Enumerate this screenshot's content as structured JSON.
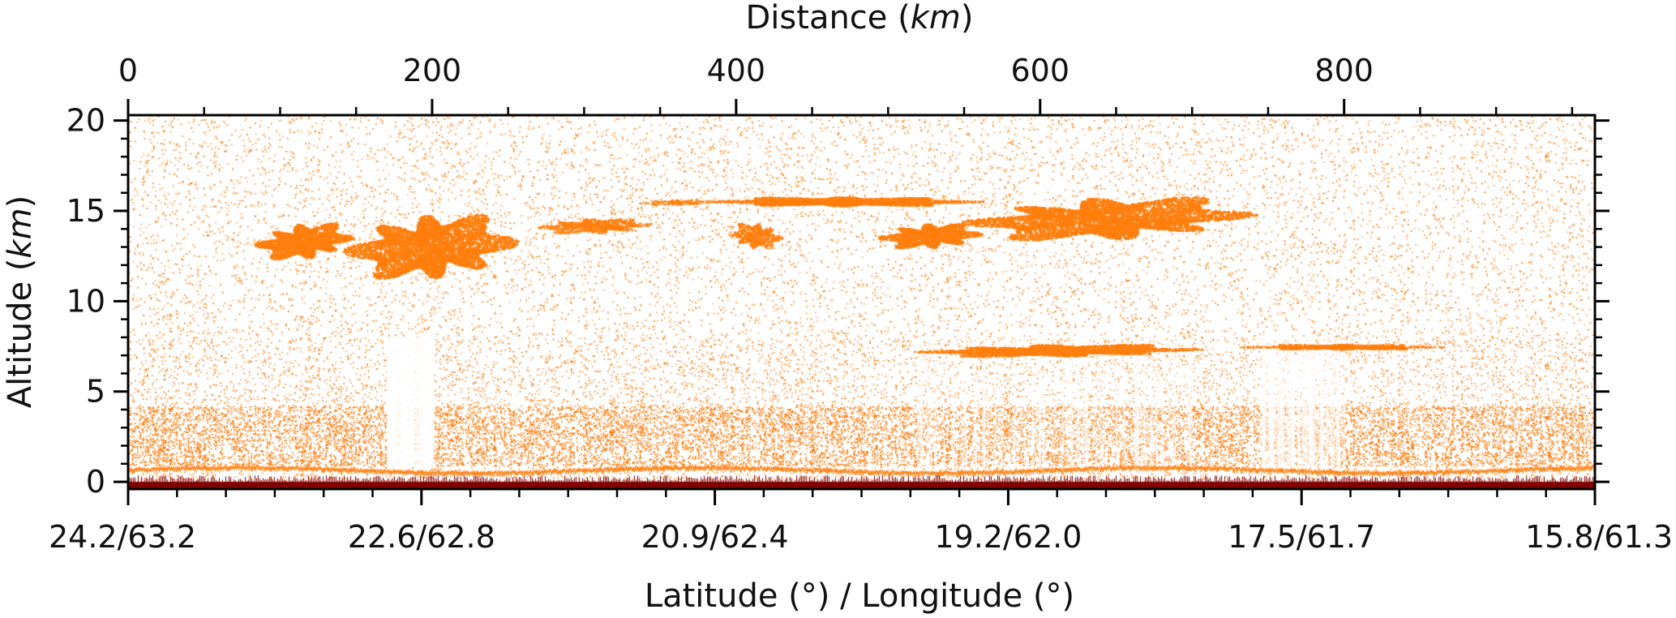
{
  "chart_data": {
    "type": "heatmap",
    "description_type": "lidar backscatter cross-section (curtain plot)",
    "top_axis": {
      "label_prefix": "Distance (",
      "label_italic": "km",
      "label_suffix": ")",
      "range": [
        0,
        965
      ],
      "ticks": [
        0,
        200,
        400,
        600,
        800
      ],
      "minor_step": 50
    },
    "y_axis": {
      "label_prefix": "Altitude (",
      "label_italic": "km",
      "label_suffix": ")",
      "range": [
        -0.4,
        20.3
      ],
      "ticks": [
        0,
        5,
        10,
        15,
        20
      ],
      "minor_step": 1
    },
    "bottom_axis": {
      "label": "Latitude (°) / Longitude (°)",
      "range": [
        0,
        965
      ],
      "ticks": [
        {
          "distance": 0,
          "label": "24.2/63.2"
        },
        {
          "distance": 193,
          "label": "22.6/62.8"
        },
        {
          "distance": 386,
          "label": "20.9/62.4"
        },
        {
          "distance": 579,
          "label": "19.2/62.0"
        },
        {
          "distance": 772,
          "label": "17.5/61.7"
        },
        {
          "distance": 965,
          "label": "15.8/61.3"
        }
      ],
      "minor_count": 30
    },
    "colors": {
      "signal": "#ff7f0e",
      "surface": "#800000",
      "background": "#ffffff",
      "axis": "#000000"
    },
    "features": {
      "cirrus_clouds": [
        {
          "distance": [
            83,
            148
          ],
          "altitude": [
            12.2,
            14.5
          ],
          "strength": "high"
        },
        {
          "distance": [
            145,
            253
          ],
          "altitude": [
            10.8,
            15.3
          ],
          "strength": "high"
        },
        {
          "distance": [
            268,
            345
          ],
          "altitude": [
            13.7,
            14.7
          ],
          "strength": "medium"
        },
        {
          "distance": [
            335,
            385
          ],
          "altitude": [
            15.3,
            15.7
          ],
          "strength": "low"
        },
        {
          "distance": [
            385,
            555
          ],
          "altitude": [
            15.2,
            15.9
          ],
          "strength": "high"
        },
        {
          "distance": [
            550,
            740
          ],
          "altitude": [
            13.2,
            16.0
          ],
          "strength": "high"
        },
        {
          "distance": [
            495,
            560
          ],
          "altitude": [
            12.8,
            14.5
          ],
          "strength": "high"
        },
        {
          "distance": [
            395,
            430
          ],
          "altitude": [
            12.8,
            14.5
          ],
          "strength": "medium"
        }
      ],
      "mid_level_layers": [
        {
          "distance": [
            518,
            705
          ],
          "altitude": [
            6.9,
            7.7
          ]
        },
        {
          "distance": [
            737,
            860
          ],
          "altitude": [
            7.3,
            7.7
          ]
        }
      ],
      "boundary_layer": {
        "top_km": 8.0,
        "dense_top_km": 4.2
      },
      "surface_return_altitude_km": 0.7
    }
  }
}
